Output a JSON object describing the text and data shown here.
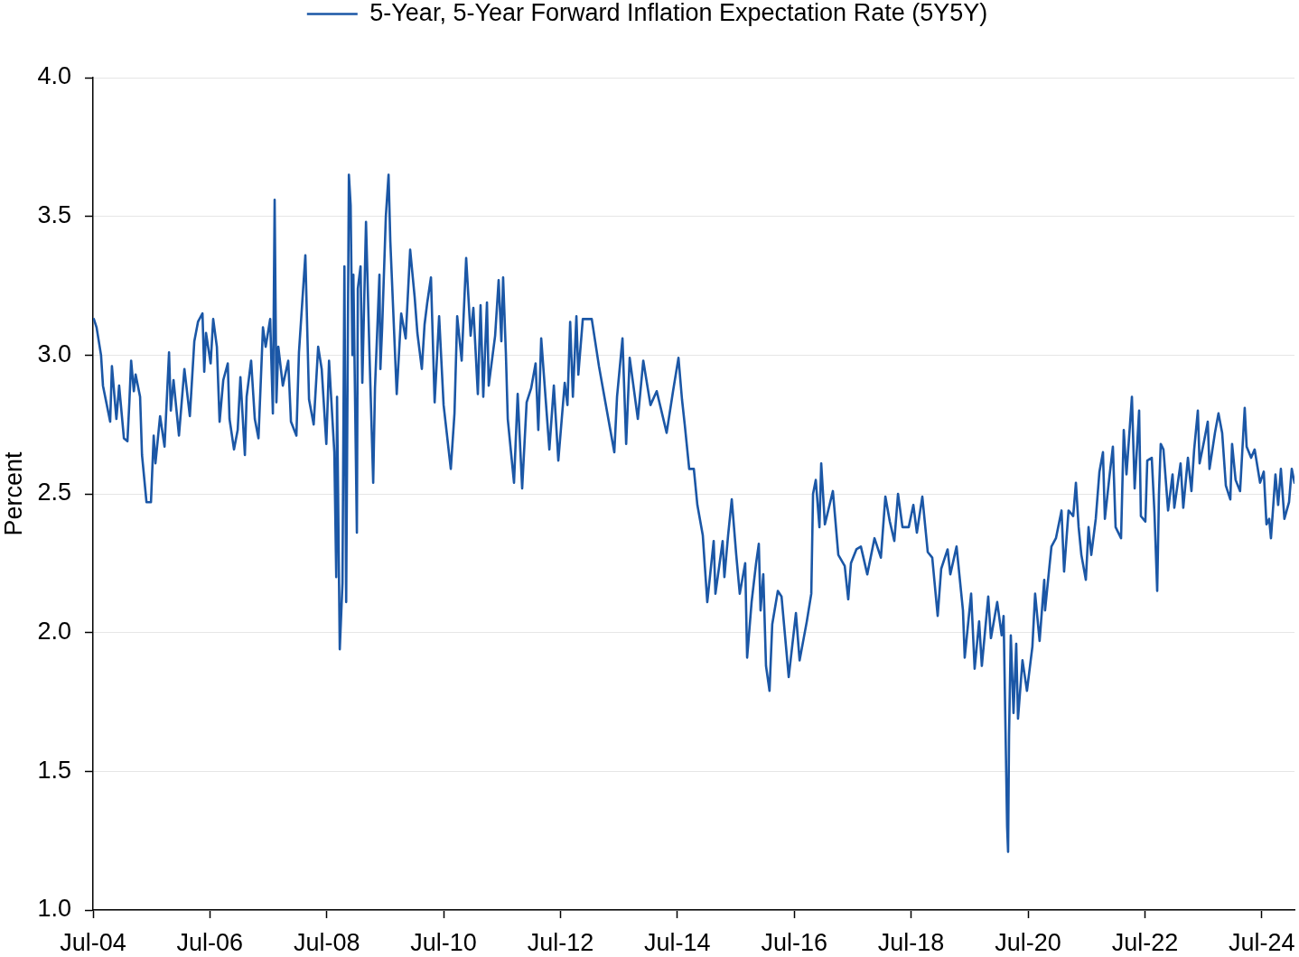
{
  "chart_data": {
    "type": "line",
    "ylabel": "Percent",
    "legend": "top",
    "grid": "y",
    "marker": "none",
    "line_style": "solid",
    "xlim": [
      "2004-07-01",
      "2025-01-21"
    ],
    "xticks": [
      {
        "value": "2004-07-01",
        "label": "Jul-04"
      },
      {
        "value": "2006-07-01",
        "label": "Jul-06"
      },
      {
        "value": "2008-07-01",
        "label": "Jul-08"
      },
      {
        "value": "2010-07-01",
        "label": "Jul-10"
      },
      {
        "value": "2012-07-01",
        "label": "Jul-12"
      },
      {
        "value": "2014-07-01",
        "label": "Jul-14"
      },
      {
        "value": "2016-07-01",
        "label": "Jul-16"
      },
      {
        "value": "2018-07-01",
        "label": "Jul-18"
      },
      {
        "value": "2020-07-01",
        "label": "Jul-20"
      },
      {
        "value": "2022-07-01",
        "label": "Jul-22"
      },
      {
        "value": "2024-07-01",
        "label": "Jul-24"
      }
    ],
    "ylim": [
      1,
      4
    ],
    "yticks": [
      {
        "value": 1,
        "label": "1.0"
      },
      1.5,
      {
        "value": 2,
        "label": "2.0"
      },
      2.5,
      {
        "value": 3,
        "label": "3.0"
      },
      3.5,
      {
        "value": 4,
        "label": "4.0"
      }
    ],
    "x": [
      "2004-07-06",
      "2004-07-23",
      "2004-08-20",
      "2004-09-01",
      "2004-10-16",
      "2004-10-27",
      "2004-11-24",
      "2004-12-11",
      "2005-01-10",
      "2005-02-01",
      "2005-02-13",
      "2005-02-24",
      "2005-03-13",
      "2005-03-24",
      "2005-04-21",
      "2005-05-03",
      "2005-05-31",
      "2005-06-28",
      "2005-07-15",
      "2005-07-26",
      "2005-08-24",
      "2005-09-21",
      "2005-10-19",
      "2005-10-30",
      "2005-11-16",
      "2005-12-20",
      "2006-01-23",
      "2006-02-26",
      "2006-03-26",
      "2006-04-18",
      "2006-05-16",
      "2006-05-27",
      "2006-06-07",
      "2006-07-06",
      "2006-07-22",
      "2006-08-14",
      "2006-08-31",
      "2006-09-23",
      "2006-10-21",
      "2006-11-01",
      "2006-11-29",
      "2006-12-22",
      "2007-01-08",
      "2007-02-05",
      "2007-02-16",
      "2007-03-16",
      "2007-04-08",
      "2007-05-01",
      "2007-05-29",
      "2007-06-15",
      "2007-07-13",
      "2007-07-30",
      "2007-08-10",
      "2007-08-21",
      "2007-09-02",
      "2007-09-30",
      "2007-11-03",
      "2007-11-20",
      "2007-12-24",
      "2008-01-09",
      "2008-02-18",
      "2008-03-12",
      "2008-04-10",
      "2008-05-08",
      "2008-05-30",
      "2008-06-28",
      "2008-07-15",
      "2008-08-17",
      "2008-08-29",
      "2008-09-03",
      "2008-09-20",
      "2008-10-07",
      "2008-10-19",
      "2008-10-30",
      "2008-11-16",
      "2008-11-27",
      "2008-12-08",
      "2008-12-14",
      "2009-01-05",
      "2009-01-11",
      "2009-01-28",
      "2009-02-08",
      "2009-03-03",
      "2009-03-25",
      "2009-04-17",
      "2009-04-28",
      "2009-05-26",
      "2009-06-01",
      "2009-06-12",
      "2009-07-05",
      "2009-07-22",
      "2009-08-02",
      "2009-09-11",
      "2009-10-09",
      "2009-11-06",
      "2009-12-04",
      "2010-01-01",
      "2010-01-18",
      "2010-02-15",
      "2010-03-04",
      "2010-03-21",
      "2010-04-13",
      "2010-05-06",
      "2010-06-03",
      "2010-07-01",
      "2010-08-15",
      "2010-09-07",
      "2010-09-24",
      "2010-10-22",
      "2010-11-19",
      "2010-12-17",
      "2011-01-03",
      "2011-01-31",
      "2011-02-17",
      "2011-03-06",
      "2011-03-29",
      "2011-04-09",
      "2011-05-19",
      "2011-06-10",
      "2011-06-27",
      "2011-07-08",
      "2011-07-25",
      "2011-08-06",
      "2011-09-14",
      "2011-10-07",
      "2011-11-04",
      "2011-12-02",
      "2011-12-30",
      "2012-01-27",
      "2012-02-13",
      "2012-03-02",
      "2012-04-22",
      "2012-05-20",
      "2012-06-17",
      "2012-07-27",
      "2012-08-13",
      "2012-08-30",
      "2012-09-16",
      "2012-10-08",
      "2012-10-20",
      "2012-11-17",
      "2013-01-12",
      "2013-02-26",
      "2013-04-07",
      "2013-06-02",
      "2013-06-19",
      "2013-07-23",
      "2013-08-15",
      "2013-09-06",
      "2013-10-27",
      "2013-11-30",
      "2014-01-14",
      "2014-02-22",
      "2014-04-25",
      "2014-06-04",
      "2014-07-08",
      "2014-07-30",
      "2014-08-16",
      "2014-09-13",
      "2014-10-12",
      "2014-11-03",
      "2014-12-07",
      "2015-01-04",
      "2015-02-13",
      "2015-02-24",
      "2015-04-10",
      "2015-04-21",
      "2015-05-14",
      "2015-06-06",
      "2015-07-04",
      "2015-07-26",
      "2015-08-29",
      "2015-09-10",
      "2015-10-08",
      "2015-11-05",
      "2015-11-22",
      "2015-12-03",
      "2015-12-20",
      "2016-01-06",
      "2016-01-28",
      "2016-02-14",
      "2016-03-20",
      "2016-04-12",
      "2016-05-27",
      "2016-07-11",
      "2016-08-03",
      "2016-09-17",
      "2016-10-15",
      "2016-10-26",
      "2016-11-12",
      "2016-12-05",
      "2016-12-16",
      "2017-01-08",
      "2017-02-27",
      "2017-04-02",
      "2017-05-12",
      "2017-06-03",
      "2017-06-20",
      "2017-07-24",
      "2017-08-21",
      "2017-09-30",
      "2017-11-14",
      "2017-12-24",
      "2018-01-21",
      "2018-02-18",
      "2018-03-18",
      "2018-04-10",
      "2018-05-08",
      "2018-06-16",
      "2018-07-15",
      "2018-08-06",
      "2018-09-09",
      "2018-10-13",
      "2018-11-10",
      "2018-12-14",
      "2019-01-05",
      "2019-02-14",
      "2019-03-03",
      "2019-04-11",
      "2019-05-21",
      "2019-06-01",
      "2019-07-11",
      "2019-08-02",
      "2019-08-30",
      "2019-09-16",
      "2019-10-26",
      "2019-11-12",
      "2019-12-21",
      "2020-01-18",
      "2020-01-30",
      "2020-02-21",
      "2020-02-27",
      "2020-03-04",
      "2020-03-15",
      "2020-04-01",
      "2020-04-18",
      "2020-04-29",
      "2020-05-27",
      "2020-06-24",
      "2020-07-28",
      "2020-08-14",
      "2020-09-11",
      "2020-10-10",
      "2020-10-15",
      "2020-11-24",
      "2020-12-22",
      "2021-01-26",
      "2021-02-11",
      "2021-03-11",
      "2021-04-09",
      "2021-04-26",
      "2021-05-13",
      "2021-05-30",
      "2021-06-27",
      "2021-07-14",
      "2021-07-31",
      "2021-08-28",
      "2021-09-20",
      "2021-10-12",
      "2021-10-24",
      "2021-11-21",
      "2021-12-13",
      "2021-12-30",
      "2022-02-02",
      "2022-02-19",
      "2022-03-08",
      "2022-04-05",
      "2022-04-11",
      "2022-04-28",
      "2022-05-26",
      "2022-06-06",
      "2022-07-04",
      "2022-07-16",
      "2022-08-13",
      "2022-08-30",
      "2022-09-16",
      "2022-09-27",
      "2022-10-08",
      "2022-10-25",
      "2022-11-23",
      "2022-12-21",
      "2023-01-01",
      "2023-02-09",
      "2023-02-26",
      "2023-03-27",
      "2023-04-18",
      "2023-05-05",
      "2023-05-28",
      "2023-06-08",
      "2023-07-06",
      "2023-07-29",
      "2023-08-09",
      "2023-09-12",
      "2023-10-04",
      "2023-10-27",
      "2023-11-19",
      "2023-12-17",
      "2023-12-28",
      "2024-01-19",
      "2024-02-16",
      "2024-03-16",
      "2024-03-28",
      "2024-04-25",
      "2024-05-17",
      "2024-06-20",
      "2024-07-13",
      "2024-07-30",
      "2024-08-16",
      "2024-08-27",
      "2024-09-24",
      "2024-10-11",
      "2024-10-28",
      "2024-11-19",
      "2024-12-18",
      "2025-01-04",
      "2025-01-21"
    ],
    "series": [
      {
        "name": "5-Year, 5-Year Forward Inflation Expectation Rate (5Y5Y)",
        "color": "#1b57a6",
        "values": [
          3.13,
          3.1,
          3.0,
          2.89,
          2.76,
          2.96,
          2.77,
          2.89,
          2.7,
          2.69,
          2.83,
          2.98,
          2.87,
          2.93,
          2.85,
          2.64,
          2.47,
          2.47,
          2.71,
          2.61,
          2.78,
          2.67,
          3.01,
          2.8,
          2.91,
          2.71,
          2.95,
          2.78,
          3.05,
          3.12,
          3.15,
          2.94,
          3.08,
          2.97,
          3.13,
          3.03,
          2.76,
          2.91,
          2.97,
          2.77,
          2.66,
          2.73,
          2.92,
          2.64,
          2.85,
          2.98,
          2.77,
          2.7,
          3.1,
          3.03,
          3.13,
          2.79,
          3.56,
          2.83,
          3.03,
          2.89,
          2.98,
          2.76,
          2.71,
          3.01,
          3.36,
          2.84,
          2.75,
          3.03,
          2.95,
          2.68,
          2.98,
          2.65,
          2.2,
          2.85,
          1.94,
          2.18,
          3.32,
          2.11,
          3.65,
          3.54,
          3.0,
          3.29,
          2.36,
          3.24,
          3.32,
          2.9,
          3.48,
          3.0,
          2.54,
          2.88,
          3.29,
          2.95,
          3.1,
          3.5,
          3.65,
          3.41,
          2.86,
          3.15,
          3.06,
          3.38,
          3.21,
          3.08,
          2.95,
          3.11,
          3.19,
          3.28,
          2.83,
          3.14,
          2.82,
          2.59,
          2.79,
          3.14,
          2.98,
          3.35,
          3.07,
          3.17,
          2.86,
          3.18,
          2.85,
          3.19,
          2.89,
          3.07,
          3.27,
          3.05,
          3.28,
          3.01,
          2.77,
          2.54,
          2.86,
          2.52,
          2.83,
          2.88,
          2.97,
          2.73,
          3.06,
          2.66,
          2.89,
          2.62,
          2.9,
          2.82,
          3.12,
          2.85,
          3.14,
          2.93,
          3.13,
          3.13,
          2.96,
          2.83,
          2.65,
          2.85,
          3.06,
          2.68,
          2.99,
          2.77,
          2.98,
          2.82,
          2.87,
          2.72,
          2.87,
          2.99,
          2.84,
          2.75,
          2.59,
          2.59,
          2.46,
          2.35,
          2.11,
          2.33,
          2.14,
          2.33,
          2.2,
          2.35,
          2.48,
          2.28,
          2.14,
          2.25,
          1.91,
          2.11,
          2.25,
          2.32,
          2.08,
          2.21,
          1.88,
          1.79,
          2.03,
          2.15,
          2.13,
          1.84,
          2.07,
          1.9,
          2.04,
          2.14,
          2.5,
          2.55,
          2.38,
          2.61,
          2.39,
          2.51,
          2.28,
          2.24,
          2.12,
          2.25,
          2.3,
          2.31,
          2.21,
          2.34,
          2.27,
          2.49,
          2.4,
          2.33,
          2.5,
          2.38,
          2.38,
          2.46,
          2.36,
          2.49,
          2.29,
          2.27,
          2.06,
          2.23,
          2.3,
          2.21,
          2.31,
          2.08,
          1.91,
          2.14,
          1.87,
          2.04,
          1.88,
          2.13,
          1.98,
          2.11,
          1.99,
          2.06,
          1.3,
          1.21,
          1.63,
          1.99,
          1.71,
          1.96,
          1.69,
          1.9,
          1.79,
          1.95,
          2.14,
          1.97,
          2.19,
          2.08,
          2.31,
          2.34,
          2.44,
          2.22,
          2.44,
          2.42,
          2.54,
          2.38,
          2.28,
          2.19,
          2.38,
          2.28,
          2.41,
          2.58,
          2.65,
          2.41,
          2.56,
          2.67,
          2.38,
          2.34,
          2.73,
          2.57,
          2.8,
          2.85,
          2.52,
          2.8,
          2.42,
          2.4,
          2.62,
          2.63,
          2.43,
          2.15,
          2.5,
          2.68,
          2.66,
          2.44,
          2.57,
          2.45,
          2.61,
          2.45,
          2.63,
          2.51,
          2.66,
          2.8,
          2.61,
          2.69,
          2.76,
          2.59,
          2.72,
          2.79,
          2.72,
          2.53,
          2.48,
          2.68,
          2.55,
          2.51,
          2.81,
          2.67,
          2.63,
          2.66,
          2.54,
          2.58,
          2.39,
          2.41,
          2.34,
          2.57,
          2.46,
          2.59,
          2.41,
          2.47,
          2.59,
          2.54
        ]
      }
    ]
  }
}
